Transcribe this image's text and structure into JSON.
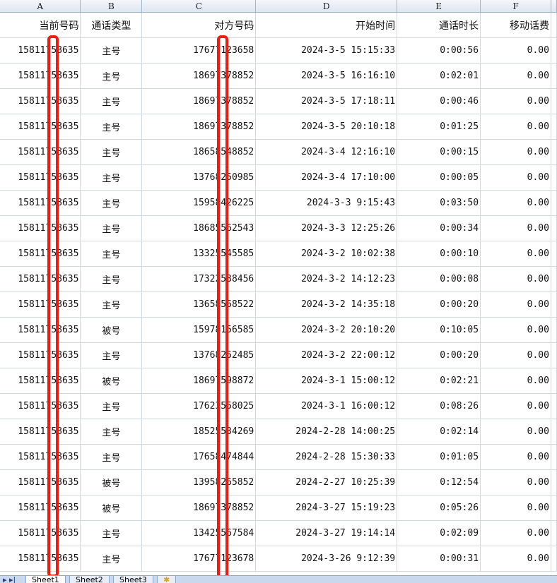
{
  "columns": [
    "A",
    "B",
    "C",
    "D",
    "E",
    "F"
  ],
  "headers": [
    "当前号码",
    "通话类型",
    "对方号码",
    "开始时间",
    "通话时长",
    "移动话费"
  ],
  "rows": [
    [
      "15811758635",
      "主号",
      "17677123658",
      "2024-3-5 15:15:33",
      "0:00:56",
      "0.00"
    ],
    [
      "15811758635",
      "主号",
      "18697378852",
      "2024-3-5 16:16:10",
      "0:02:01",
      "0.00"
    ],
    [
      "15811758635",
      "主号",
      "18697378852",
      "2024-3-5 17:18:11",
      "0:00:46",
      "0.00"
    ],
    [
      "15811758635",
      "主号",
      "18697378852",
      "2024-3-5 20:10:18",
      "0:01:25",
      "0.00"
    ],
    [
      "15811758635",
      "主号",
      "18658548852",
      "2024-3-4 12:16:10",
      "0:00:15",
      "0.00"
    ],
    [
      "15811758635",
      "主号",
      "13768250985",
      "2024-3-4 17:10:00",
      "0:00:05",
      "0.00"
    ],
    [
      "15811758635",
      "主号",
      "15958426225",
      "2024-3-3 9:15:43",
      "0:03:50",
      "0.00"
    ],
    [
      "15811758635",
      "主号",
      "18685562543",
      "2024-3-3 12:25:26",
      "0:00:34",
      "0.00"
    ],
    [
      "15811758635",
      "主号",
      "13325545585",
      "2024-3-2 10:02:38",
      "0:00:10",
      "0.00"
    ],
    [
      "15811758635",
      "主号",
      "17322538456",
      "2024-3-2 14:12:23",
      "0:00:08",
      "0.00"
    ],
    [
      "15811758635",
      "主号",
      "13658568522",
      "2024-3-2 14:35:18",
      "0:00:20",
      "0.00"
    ],
    [
      "15811758635",
      "被号",
      "15978156585",
      "2024-3-2 20:10:20",
      "0:10:05",
      "0.00"
    ],
    [
      "15811758635",
      "主号",
      "13768252485",
      "2024-3-2 22:00:12",
      "0:00:20",
      "0.00"
    ],
    [
      "15811758635",
      "被号",
      "18697598872",
      "2024-3-1 15:00:12",
      "0:02:21",
      "0.00"
    ],
    [
      "15811758635",
      "主号",
      "17623558025",
      "2024-3-1 16:00:12",
      "0:08:26",
      "0.00"
    ],
    [
      "15811758635",
      "主号",
      "18525534269",
      "2024-2-28 14:00:25",
      "0:02:14",
      "0.00"
    ],
    [
      "15811758635",
      "主号",
      "17658474844",
      "2024-2-28 15:30:33",
      "0:01:05",
      "0.00"
    ],
    [
      "15811758635",
      "被号",
      "13958265852",
      "2024-2-27 10:25:39",
      "0:12:54",
      "0.00"
    ],
    [
      "15811758635",
      "被号",
      "18697378852",
      "2024-3-27 15:19:23",
      "0:05:26",
      "0.00"
    ],
    [
      "15811758635",
      "主号",
      "13425567584",
      "2024-3-27 19:14:14",
      "0:02:09",
      "0.00"
    ],
    [
      "15811758635",
      "主号",
      "17677123678",
      "2024-3-26 9:12:39",
      "0:00:31",
      "0.00"
    ]
  ],
  "sheet_tabs": [
    "Sheet1",
    "Sheet2",
    "Sheet3"
  ],
  "active_tab": "Sheet1",
  "redaction_color": "#f01a10"
}
